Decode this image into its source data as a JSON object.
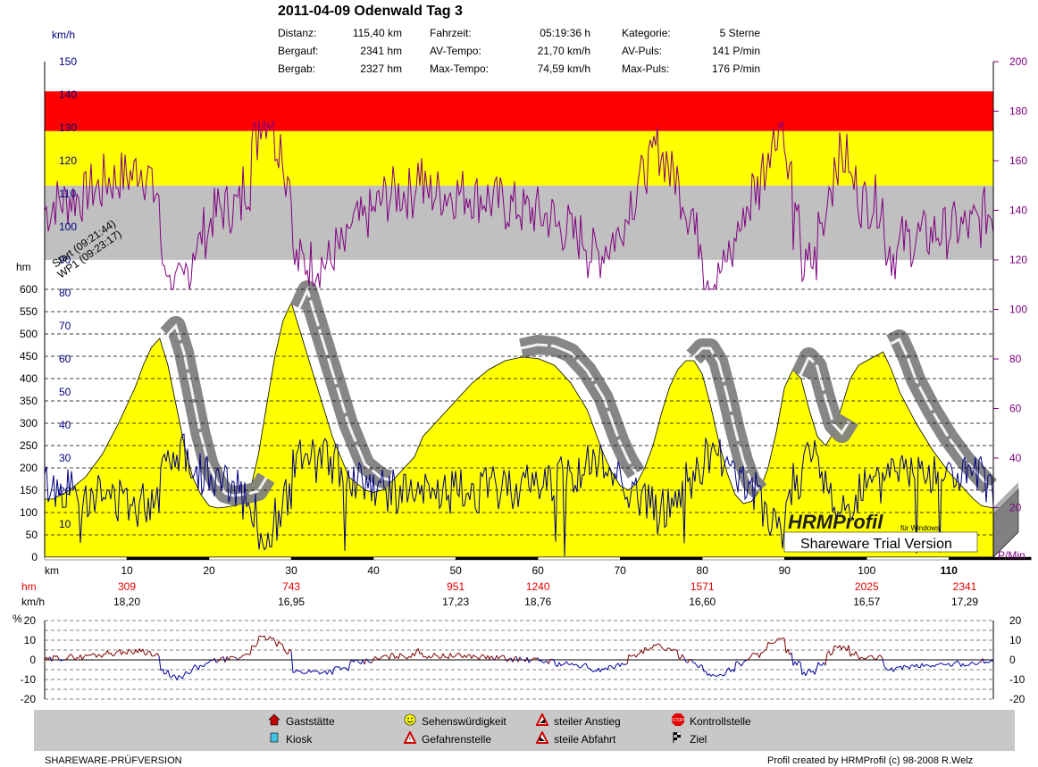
{
  "title": "2011-04-09 Odenwald Tag 3",
  "stats": [
    {
      "label": "Distanz:",
      "value": "115,40 km"
    },
    {
      "label": "Bergauf:",
      "value": "2341 hm"
    },
    {
      "label": "Bergab:",
      "value": "2327 hm"
    },
    {
      "label": "Fahrzeit:",
      "value": "05:19:36 h"
    },
    {
      "label": "AV-Tempo:",
      "value": "21,70 km/h"
    },
    {
      "label": "Max-Tempo:",
      "value": "74,59 km/h"
    },
    {
      "label": "Kategorie:",
      "value": "5 Sterne"
    },
    {
      "label": "AV-Puls:",
      "value": "141 P/min"
    },
    {
      "label": "Max-Puls:",
      "value": "176 P/min"
    }
  ],
  "annotations": [
    "Start (09:21:44)",
    "WP1 (09:23:17)"
  ],
  "watermark": {
    "logo": "HRMProfil",
    "sub": "für Windows",
    "trial": "Shareware Trial  Version"
  },
  "chart_data": [
    {
      "type": "area",
      "title": "2011-04-09 Odenwald Tag 3",
      "xlabel": "km",
      "ylabel": "hm",
      "x_ticks": [
        10,
        20,
        30,
        40,
        50,
        60,
        70,
        80,
        90,
        100,
        110
      ],
      "x_range": [
        0,
        115.4
      ],
      "hm_ticks": [
        0,
        50,
        100,
        150,
        200,
        250,
        300,
        350,
        400,
        450,
        500,
        550,
        600
      ],
      "hm_range": [
        0,
        600
      ],
      "speed_axis_label": "km/h",
      "speed_ticks": [
        10,
        20,
        30,
        40,
        50,
        60,
        70,
        80,
        90,
        100,
        110,
        120,
        130,
        140,
        150
      ],
      "speed_range": [
        0,
        150
      ],
      "pulse_axis_label": "P/Min",
      "pulse_ticks": [
        20,
        40,
        60,
        80,
        100,
        120,
        140,
        160,
        180,
        200
      ],
      "pulse_range": [
        0,
        200
      ],
      "pulse_zones": [
        {
          "from": 120,
          "to": 150,
          "color": "#c0c0c0"
        },
        {
          "from": 150,
          "to": 172,
          "color": "#ffff00"
        },
        {
          "from": 172,
          "to": 188,
          "color": "#ff0000"
        }
      ],
      "series": [
        {
          "name": "hm",
          "color": "#ffff00",
          "x": [
            0,
            1,
            3,
            5,
            7,
            9,
            11,
            12,
            13,
            14,
            15,
            16,
            17,
            18,
            19,
            20,
            21,
            22,
            23,
            24,
            25,
            26,
            27,
            28,
            29,
            30,
            31,
            33,
            35,
            37,
            39,
            40,
            41,
            42,
            43,
            44,
            45,
            46,
            48,
            50,
            52,
            54,
            56,
            58,
            60,
            62,
            64,
            66,
            67,
            68,
            69,
            70,
            71,
            72,
            73,
            74,
            75,
            76,
            77,
            78,
            79,
            80,
            81,
            82,
            83,
            84,
            85,
            86,
            87,
            88,
            89,
            90,
            91,
            92,
            93,
            94,
            95,
            96,
            97,
            98,
            99,
            100,
            101,
            102,
            103,
            104,
            106,
            108,
            110,
            112,
            113,
            114,
            115.4
          ],
          "y": [
            130,
            130,
            150,
            180,
            230,
            300,
            380,
            430,
            470,
            490,
            430,
            340,
            250,
            180,
            140,
            115,
            110,
            112,
            115,
            120,
            150,
            230,
            340,
            450,
            530,
            570,
            510,
            390,
            270,
            180,
            150,
            145,
            150,
            165,
            185,
            205,
            225,
            270,
            310,
            350,
            390,
            420,
            440,
            448,
            445,
            430,
            390,
            330,
            280,
            230,
            190,
            160,
            150,
            165,
            200,
            250,
            320,
            380,
            420,
            440,
            440,
            410,
            340,
            260,
            190,
            140,
            120,
            125,
            150,
            200,
            280,
            380,
            420,
            400,
            330,
            270,
            250,
            280,
            340,
            400,
            430,
            440,
            450,
            460,
            420,
            370,
            300,
            240,
            190,
            150,
            130,
            115,
            110
          ]
        },
        {
          "name": "km/h",
          "color": "#000080"
        },
        {
          "name": "P/Min",
          "color": "#800080"
        }
      ],
      "cumulative_hm": [
        {
          "km": 10,
          "hm": 309,
          "kmh": "18,20"
        },
        {
          "km": 30,
          "hm": 743,
          "kmh": "16,95"
        },
        {
          "km": 50,
          "hm": 951,
          "kmh": "17,23"
        },
        {
          "km": 60,
          "hm": 1240,
          "kmh": "18,76"
        },
        {
          "km": 80,
          "hm": 1571,
          "kmh": "16,60"
        },
        {
          "km": 100,
          "hm": 2025,
          "kmh": "16,57"
        },
        {
          "km": 115,
          "hm": 2341,
          "kmh": "17,29"
        }
      ],
      "cumulative_labels": {
        "hm": "hm",
        "kmh": "km/h"
      }
    },
    {
      "type": "line",
      "ylabel": "%",
      "y_ticks": [
        -20,
        -10,
        0,
        10,
        20
      ],
      "y_range": [
        -20,
        20
      ],
      "colors": {
        "up": "#800000",
        "down": "#0000a0"
      }
    }
  ],
  "legend": [
    {
      "icon": "gasthaus-icon",
      "label": "Gaststätte"
    },
    {
      "icon": "kiosk-icon",
      "label": "Kiosk"
    },
    {
      "icon": "smiley-icon",
      "label": "Sehenswürdigkeit"
    },
    {
      "icon": "warning-icon",
      "label": "Gefahrenstelle"
    },
    {
      "icon": "steep-climb-icon",
      "label": "steiler Anstieg"
    },
    {
      "icon": "steep-descent-icon",
      "label": "steile Abfahrt"
    },
    {
      "icon": "stop-icon",
      "label": "Kontrollstelle"
    },
    {
      "icon": "finish-flag-icon",
      "label": "Ziel"
    }
  ],
  "footer": {
    "left": "SHAREWARE-PRÜFVERSION",
    "right": "Profil created by HRMProfil (c) 98-2008 R.Welz"
  }
}
